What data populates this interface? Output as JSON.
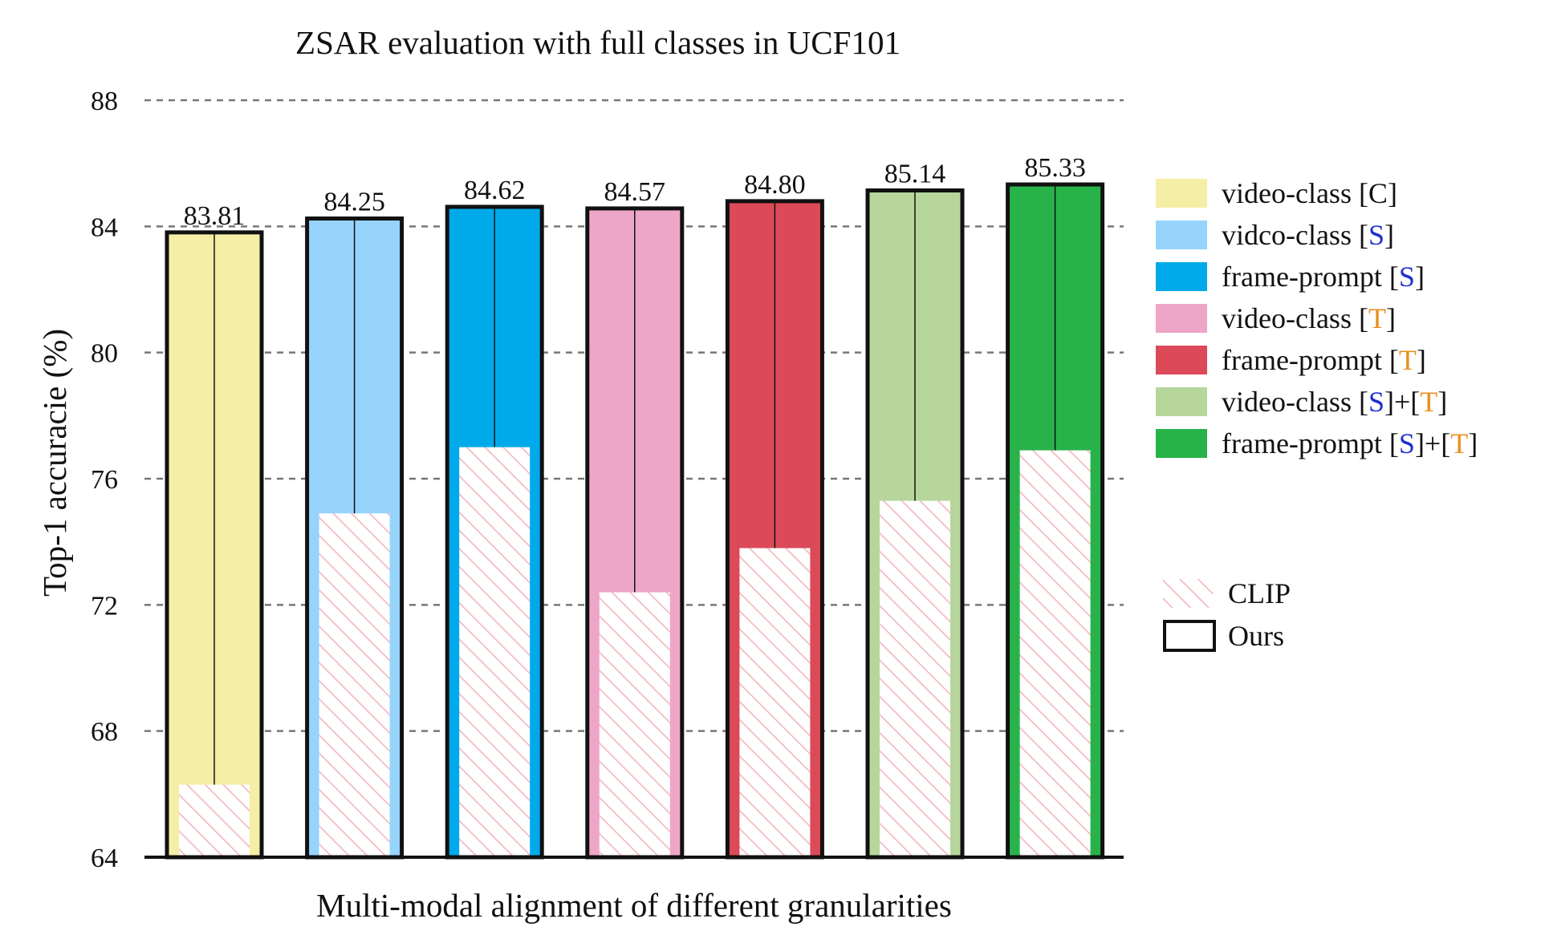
{
  "chart_data": {
    "type": "bar",
    "title": "ZSAR evaluation with full classes in UCF101",
    "xlabel": "Multi-modal alignment of different granularities",
    "ylabel": "Top-1 accuracie (%)",
    "ylim": [
      64,
      88
    ],
    "yticks": [
      64,
      68,
      72,
      76,
      80,
      84,
      88
    ],
    "grid": true,
    "legend_position": "right",
    "categories": [
      "video-class [C]",
      "vidco-class [S]",
      "frame-prompt [S]",
      "video-class [T]",
      "frame-prompt [T]",
      "video-class [S]+[T]",
      "frame-prompt [S]+[T]"
    ],
    "series": [
      {
        "name": "Ours",
        "values": [
          83.81,
          84.25,
          84.62,
          84.57,
          84.8,
          85.14,
          85.33
        ],
        "labels": [
          "83.81",
          "84.25",
          "84.62",
          "84.57",
          "84.80",
          "85.14",
          "85.33"
        ]
      },
      {
        "name": "CLIP",
        "values": [
          66.3,
          74.9,
          77.0,
          72.4,
          73.8,
          75.3,
          76.9
        ]
      }
    ],
    "colors": [
      "#f5eea6",
      "#97d4fb",
      "#00aaea",
      "#eea6c8",
      "#dc4a59",
      "#b7d69c",
      "#28b34a"
    ],
    "legend": {
      "entries": [
        {
          "parts": [
            {
              "text": "video-class [C]",
              "color": "#111111"
            }
          ]
        },
        {
          "parts": [
            {
              "text": "vidco-class [",
              "color": "#111111"
            },
            {
              "text": "S",
              "color": "#1c2fcc"
            },
            {
              "text": "]",
              "color": "#111111"
            }
          ]
        },
        {
          "parts": [
            {
              "text": "frame-prompt [",
              "color": "#111111"
            },
            {
              "text": "S",
              "color": "#1c2fcc"
            },
            {
              "text": "]",
              "color": "#111111"
            }
          ]
        },
        {
          "parts": [
            {
              "text": "video-class [",
              "color": "#111111"
            },
            {
              "text": "T",
              "color": "#e8901c"
            },
            {
              "text": "]",
              "color": "#111111"
            }
          ]
        },
        {
          "parts": [
            {
              "text": "frame-prompt [",
              "color": "#111111"
            },
            {
              "text": "T",
              "color": "#e8901c"
            },
            {
              "text": "]",
              "color": "#111111"
            }
          ]
        },
        {
          "parts": [
            {
              "text": "video-class [",
              "color": "#111111"
            },
            {
              "text": "S",
              "color": "#1c2fcc"
            },
            {
              "text": "]+[",
              "color": "#111111"
            },
            {
              "text": "T",
              "color": "#e8901c"
            },
            {
              "text": "]",
              "color": "#111111"
            }
          ]
        },
        {
          "parts": [
            {
              "text": "frame-prompt [",
              "color": "#111111"
            },
            {
              "text": "S",
              "color": "#1c2fcc"
            },
            {
              "text": "]+[",
              "color": "#111111"
            },
            {
              "text": "T",
              "color": "#e8901c"
            },
            {
              "text": "]",
              "color": "#111111"
            }
          ]
        }
      ],
      "clip_label": "CLIP",
      "ours_label": "Ours"
    },
    "hatch_color": "#f2bcc0"
  }
}
